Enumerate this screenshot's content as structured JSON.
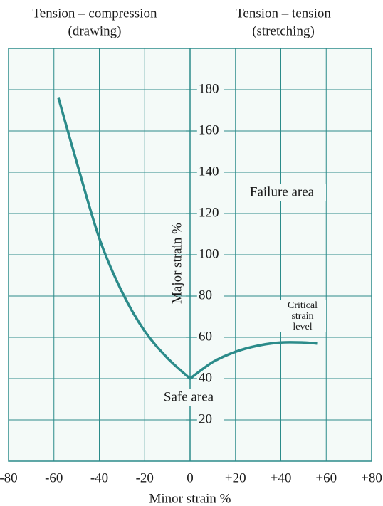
{
  "chart_data": {
    "type": "line",
    "header": [
      [
        "Tension – compression",
        "(drawing)"
      ],
      [
        "Tension – tension",
        "(stretching)"
      ]
    ],
    "xlabel": "Minor strain %",
    "ylabel": "Major strain %",
    "region_labels": [
      "Failure area",
      "Safe area"
    ],
    "curve_label": [
      "Critical",
      "strain",
      "level"
    ],
    "x": [
      -58,
      -50,
      -40,
      -30,
      -20,
      -10,
      0,
      10,
      20,
      30,
      40,
      50,
      56
    ],
    "values": [
      176,
      145,
      108,
      82,
      63,
      50,
      40,
      48,
      53,
      56,
      57.5,
      57.5,
      57
    ],
    "color": "#2b8b8a",
    "xlim": [
      -80,
      80
    ],
    "xticks": [
      -80,
      -60,
      -40,
      -20,
      0,
      {
        "value": 20,
        "label": "+20"
      },
      {
        "value": 40,
        "label": "+40"
      },
      {
        "value": 60,
        "label": "+60"
      },
      {
        "value": 80,
        "label": "+80"
      }
    ],
    "ylim": [
      0,
      200
    ],
    "yticks": [
      20,
      40,
      60,
      80,
      100,
      120,
      140,
      160,
      180
    ],
    "grid": true
  }
}
